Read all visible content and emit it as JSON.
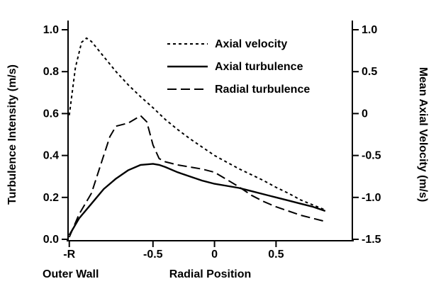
{
  "colors": {
    "line": "#000000",
    "background": "#ffffff"
  },
  "chart_data": {
    "type": "line",
    "title": "",
    "x_axis": {
      "label": "Radial Position",
      "range": [
        -1.19,
        1.12
      ],
      "ticks": [
        {
          "v": -1.18,
          "label": "-R"
        },
        {
          "v": -0.5,
          "label": "-0.5"
        },
        {
          "v": 0,
          "label": "0"
        },
        {
          "v": 0.5,
          "label": "0.5"
        }
      ],
      "wall_annotation": "Outer Wall"
    },
    "y_left": {
      "label": "Turbulence Intensity (m/s)",
      "range": [
        0.0,
        1.0
      ],
      "ticks": [
        {
          "v": 0.0,
          "label": "0.0"
        },
        {
          "v": 0.2,
          "label": "0.2"
        },
        {
          "v": 0.4,
          "label": "0.4"
        },
        {
          "v": 0.6,
          "label": "0.6"
        },
        {
          "v": 0.8,
          "label": "0.8"
        },
        {
          "v": 1.0,
          "label": "1.0"
        }
      ]
    },
    "y_right": {
      "label": "Mean Axial Velocity (m/s)",
      "range": [
        -1.5,
        1.0
      ],
      "ticks": [
        {
          "v": 1.0,
          "label": "1.0"
        },
        {
          "v": 0.5,
          "label": "0.5"
        },
        {
          "v": 0,
          "label": "0"
        },
        {
          "v": -0.5,
          "label": "-0.5"
        },
        {
          "v": -1.0,
          "label": "-1.0"
        },
        {
          "v": -1.5,
          "label": "-1.5"
        }
      ]
    },
    "legend": [
      {
        "name": "Axial velocity",
        "style": "short-dash"
      },
      {
        "name": "Axial turbulence",
        "style": "solid"
      },
      {
        "name": "Radial turbulence",
        "style": "long-dash"
      }
    ],
    "series": [
      {
        "name": "Axial velocity",
        "axis": "right",
        "style": "short-dash",
        "points": [
          [
            -1.18,
            -0.02
          ],
          [
            -1.13,
            0.55
          ],
          [
            -1.08,
            0.85
          ],
          [
            -1.04,
            0.9
          ],
          [
            -1.0,
            0.86
          ],
          [
            -0.9,
            0.68
          ],
          [
            -0.8,
            0.5
          ],
          [
            -0.7,
            0.34
          ],
          [
            -0.6,
            0.2
          ],
          [
            -0.5,
            0.07
          ],
          [
            -0.4,
            -0.07
          ],
          [
            -0.3,
            -0.19
          ],
          [
            -0.2,
            -0.3
          ],
          [
            -0.1,
            -0.4
          ],
          [
            0.0,
            -0.5
          ],
          [
            0.1,
            -0.58
          ],
          [
            0.2,
            -0.66
          ],
          [
            0.3,
            -0.73
          ],
          [
            0.4,
            -0.8
          ],
          [
            0.5,
            -0.88
          ],
          [
            0.6,
            -0.95
          ],
          [
            0.7,
            -1.03
          ],
          [
            0.8,
            -1.09
          ],
          [
            0.9,
            -1.15
          ]
        ]
      },
      {
        "name": "Axial turbulence",
        "axis": "left",
        "style": "solid",
        "points": [
          [
            -1.18,
            0.02
          ],
          [
            -1.1,
            0.1
          ],
          [
            -1.0,
            0.17
          ],
          [
            -0.9,
            0.24
          ],
          [
            -0.8,
            0.29
          ],
          [
            -0.7,
            0.33
          ],
          [
            -0.6,
            0.355
          ],
          [
            -0.5,
            0.36
          ],
          [
            -0.45,
            0.355
          ],
          [
            -0.4,
            0.345
          ],
          [
            -0.3,
            0.32
          ],
          [
            -0.2,
            0.3
          ],
          [
            -0.1,
            0.28
          ],
          [
            0.0,
            0.265
          ],
          [
            0.1,
            0.255
          ],
          [
            0.2,
            0.245
          ],
          [
            0.3,
            0.23
          ],
          [
            0.4,
            0.215
          ],
          [
            0.5,
            0.2
          ],
          [
            0.6,
            0.185
          ],
          [
            0.7,
            0.17
          ],
          [
            0.8,
            0.155
          ],
          [
            0.9,
            0.135
          ]
        ]
      },
      {
        "name": "Radial turbulence",
        "axis": "left",
        "style": "long-dash",
        "points": [
          [
            -1.18,
            0.01
          ],
          [
            -1.1,
            0.12
          ],
          [
            -1.0,
            0.22
          ],
          [
            -0.9,
            0.4
          ],
          [
            -0.85,
            0.49
          ],
          [
            -0.8,
            0.54
          ],
          [
            -0.7,
            0.555
          ],
          [
            -0.6,
            0.59
          ],
          [
            -0.55,
            0.56
          ],
          [
            -0.5,
            0.45
          ],
          [
            -0.45,
            0.385
          ],
          [
            -0.4,
            0.37
          ],
          [
            -0.3,
            0.355
          ],
          [
            -0.2,
            0.345
          ],
          [
            -0.1,
            0.335
          ],
          [
            0.0,
            0.32
          ],
          [
            0.1,
            0.285
          ],
          [
            0.2,
            0.25
          ],
          [
            0.3,
            0.21
          ],
          [
            0.4,
            0.18
          ],
          [
            0.5,
            0.155
          ],
          [
            0.6,
            0.135
          ],
          [
            0.7,
            0.115
          ],
          [
            0.8,
            0.1
          ],
          [
            0.9,
            0.085
          ]
        ]
      }
    ]
  }
}
